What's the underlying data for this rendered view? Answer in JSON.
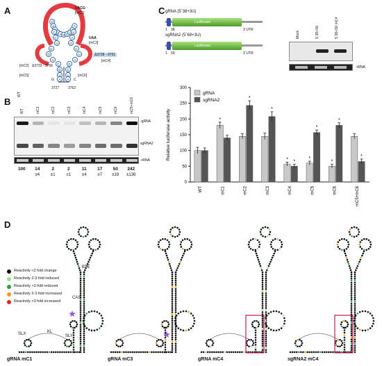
{
  "panels": {
    "a": "A",
    "b": "B",
    "c": "C",
    "d": "D"
  },
  "panel_a": {
    "nt": [
      "U",
      "A",
      "C",
      "G",
      "A",
      "G",
      "C",
      "U",
      "A",
      "A",
      "C",
      "C",
      "U",
      "C",
      "G",
      "A",
      "C",
      "G",
      "U",
      "A",
      "U",
      "A",
      "G",
      "C",
      "U",
      "A",
      "G",
      "C",
      "U",
      "A",
      "C",
      "G"
    ],
    "labels": {
      "uacg": "UACG",
      "mc1": "[mC1]",
      "uaa": "UAA",
      "mc3": "[mC3]",
      "del1": "Δ3728 - 3761",
      "mc4": "[mC4]",
      "mc2": "[mC2]",
      "del2": "Δ3733 - 3756",
      "mc5": "[mC5]",
      "mc6": "[mC6]",
      "g": "G",
      "c": "C",
      "n3727": "3727",
      "n3762": "3762"
    }
  },
  "panel_b": {
    "lanes": [
      "WT",
      "mC1",
      "mC2",
      "mC3",
      "mC4",
      "mC5",
      "mC6",
      "mC5+mC6"
    ],
    "band_labels": {
      "g": "-gRNA",
      "sg": "sgRNA2",
      "r": "-rRNA"
    },
    "values": [
      "100",
      "14",
      "2",
      "2",
      "11",
      "17",
      "50",
      "242"
    ],
    "errors": [
      "",
      "±4",
      "±1",
      "±1",
      "±4",
      "±7",
      "±19",
      "±136"
    ]
  },
  "panel_c": {
    "constructs": [
      {
        "name": "gRNA (5´38+3U)",
        "box": "Luciferase",
        "utr": "3´UTR",
        "n1": "1",
        "n2": "38"
      },
      {
        "name": "sgRNA2 (5´69+3U)",
        "box": "Luciferase",
        "utr": "3´UTR",
        "n1": "1",
        "n2": "69"
      }
    ],
    "blot_lanes": [
      "Mock",
      "5´38+3U",
      "5´38+3U mC4"
    ],
    "rrna": "-rRNA"
  },
  "chart_data": {
    "type": "bar",
    "categories": [
      "WT",
      "mC1",
      "mC2",
      "mC3",
      "mC4",
      "mC5",
      "mC6",
      "mC5+mC6"
    ],
    "series": [
      {
        "name": "gRNA",
        "values": [
          100,
          180,
          145,
          145,
          57,
          60,
          50,
          145
        ],
        "errors": [
          10,
          10,
          8,
          10,
          6,
          6,
          6,
          8
        ],
        "color": "#c8c8c8"
      },
      {
        "name": "sgRNA2",
        "values": [
          100,
          140,
          243,
          208,
          50,
          157,
          180,
          65
        ],
        "errors": [
          8,
          8,
          15,
          15,
          6,
          8,
          8,
          8
        ],
        "color": "#555555"
      }
    ],
    "ylabel": "Relative luciferase activity",
    "ylim": [
      0,
      300
    ],
    "yticks": [
      "0",
      "50",
      "100",
      "150",
      "200",
      "250",
      "300"
    ],
    "significance": [
      [
        false,
        false
      ],
      [
        true,
        false
      ],
      [
        false,
        true
      ],
      [
        false,
        true
      ],
      [
        true,
        true
      ],
      [
        true,
        true
      ],
      [
        true,
        true
      ],
      [
        false,
        true
      ]
    ],
    "star": "*",
    "legend": "top-left"
  },
  "panel_d": {
    "legend": [
      {
        "label": "Reactivity <2 fold change",
        "color": "#111111"
      },
      {
        "label": "Reactivity 2-3 fold reduced",
        "color": "#9be08d"
      },
      {
        "label": "Reactivity >3 fold reduced",
        "color": "#2ea043"
      },
      {
        "label": "Reactivity 2-3 fold increased",
        "color": "#f39c12"
      },
      {
        "label": "Reactivity >3 fold increased",
        "color": "#e0262b"
      }
    ],
    "struct_labels": {
      "bte": "BTE",
      "cas": "CAS",
      "kl": "KL",
      "slx": "SLX",
      "sly": "SLY"
    },
    "captions": [
      "gRNA mC1",
      "gRNA mC3",
      "gRNA mC4",
      "sgRNA2 mC4"
    ]
  }
}
